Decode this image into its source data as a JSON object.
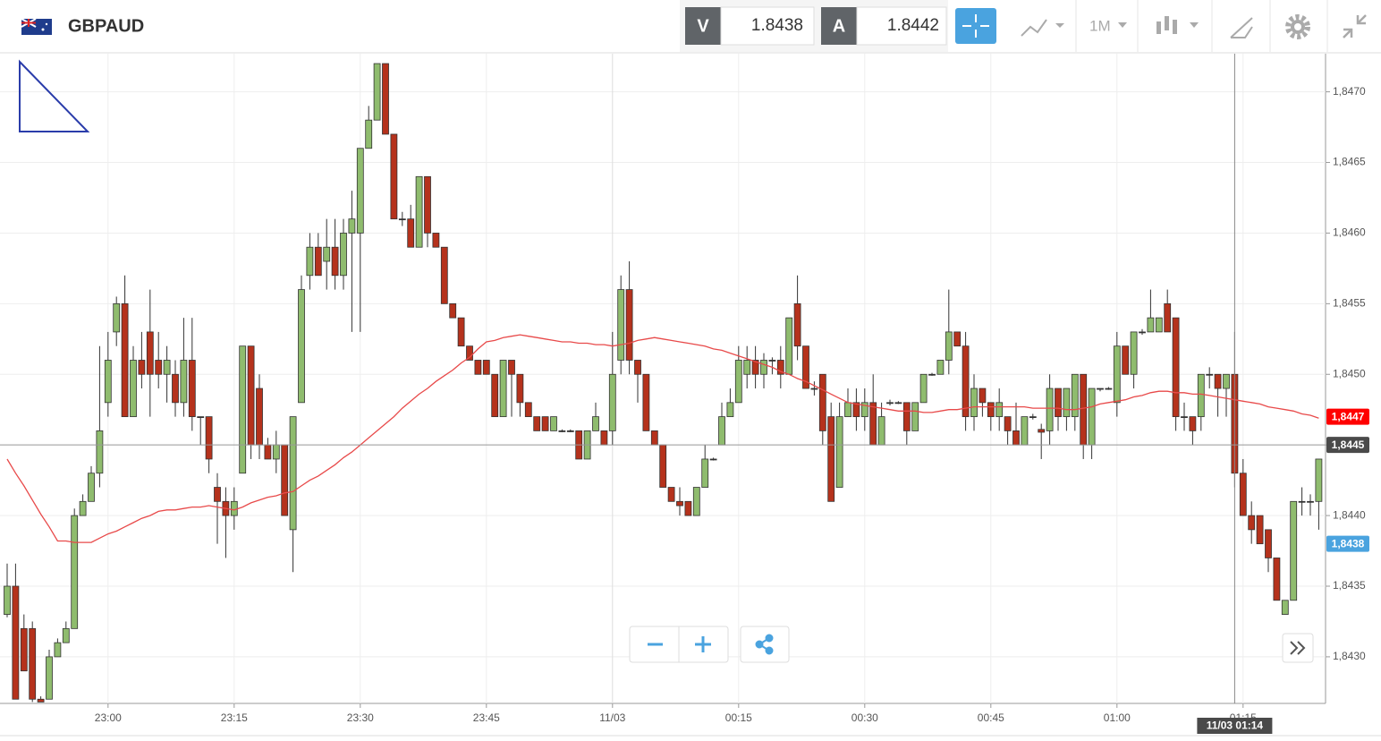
{
  "header": {
    "symbol": "GBPAUD",
    "bid_label": "V",
    "bid": 1.8438,
    "ask_label": "A",
    "ask": 1.8442,
    "timeframe": "1M"
  },
  "chart_data": {
    "type": "candlestick",
    "x": [
      "22:48",
      "22:49",
      "22:50",
      "22:51",
      "22:52",
      "22:53",
      "22:54",
      "22:55",
      "22:56",
      "22:57",
      "22:58",
      "22:59",
      "23:00",
      "23:01",
      "23:02",
      "23:03",
      "23:04",
      "23:05",
      "23:06",
      "23:07",
      "23:08",
      "23:09",
      "23:10",
      "23:11",
      "23:12",
      "23:13",
      "23:14",
      "23:15",
      "23:16",
      "23:17",
      "23:18",
      "23:19",
      "23:20",
      "23:21",
      "23:22",
      "23:23",
      "23:24",
      "23:25",
      "23:26",
      "23:27",
      "23:28",
      "23:29",
      "23:30",
      "23:31",
      "23:32",
      "23:33",
      "23:34",
      "23:35",
      "23:36",
      "23:37",
      "23:38",
      "23:39",
      "23:40",
      "23:41",
      "23:42",
      "23:43",
      "23:44",
      "23:45",
      "23:46",
      "23:47",
      "23:48",
      "23:49",
      "23:50",
      "23:51",
      "23:52",
      "23:53",
      "23:54",
      "23:55",
      "23:56",
      "23:57",
      "23:58",
      "23:59",
      "00:00",
      "00:01",
      "00:02",
      "00:03",
      "00:04",
      "00:05",
      "00:06",
      "00:07",
      "00:08",
      "00:09",
      "00:10",
      "00:11",
      "00:12",
      "00:13",
      "00:14",
      "00:15",
      "00:16",
      "00:17",
      "00:18",
      "00:19",
      "00:20",
      "00:21",
      "00:22",
      "00:23",
      "00:24",
      "00:25",
      "00:26",
      "00:27",
      "00:28",
      "00:29",
      "00:30",
      "00:31",
      "00:32",
      "00:33",
      "00:34",
      "00:35",
      "00:36",
      "00:37",
      "00:38",
      "00:39",
      "00:40",
      "00:41",
      "00:42",
      "00:43",
      "00:44",
      "00:45",
      "00:46",
      "00:47",
      "00:48",
      "00:49",
      "00:50",
      "00:51",
      "00:52",
      "00:53",
      "00:54",
      "00:55",
      "00:56",
      "00:57",
      "00:58",
      "00:59",
      "01:00",
      "01:01",
      "01:02",
      "01:03",
      "01:04",
      "01:05",
      "01:06",
      "01:07",
      "01:08",
      "01:09",
      "01:10",
      "01:11",
      "01:12",
      "01:13",
      "01:14",
      "01:15",
      "01:16",
      "01:17",
      "01:18",
      "01:19",
      "01:20",
      "01:21",
      "01:22",
      "01:23",
      "01:24"
    ],
    "ohlc": [
      [
        1.8433,
        1.84366,
        1.84328,
        1.8435
      ],
      [
        1.8435,
        1.84366,
        1.8427,
        1.8427
      ],
      [
        1.8432,
        1.8433,
        1.8429,
        1.8429
      ],
      [
        1.8432,
        1.84325,
        1.84268,
        1.8427
      ],
      [
        1.8427,
        1.84272,
        1.84268,
        1.84268
      ],
      [
        1.8427,
        1.84305,
        1.8427,
        1.843
      ],
      [
        1.843,
        1.84313,
        1.843,
        1.8431
      ],
      [
        1.8431,
        1.84325,
        1.8431,
        1.8432
      ],
      [
        1.8432,
        1.84405,
        1.8432,
        1.844
      ],
      [
        1.844,
        1.84415,
        1.844,
        1.8441
      ],
      [
        1.8441,
        1.84435,
        1.8441,
        1.8443
      ],
      [
        1.8443,
        1.8452,
        1.8442,
        1.8446
      ],
      [
        1.8448,
        1.8453,
        1.8447,
        1.8451
      ],
      [
        1.8453,
        1.84555,
        1.8452,
        1.8455
      ],
      [
        1.8455,
        1.8457,
        1.8447,
        1.8447
      ],
      [
        1.8447,
        1.8452,
        1.8447,
        1.8451
      ],
      [
        1.8451,
        1.8453,
        1.8449,
        1.845
      ],
      [
        1.8453,
        1.8456,
        1.8447,
        1.845
      ],
      [
        1.8451,
        1.8453,
        1.8449,
        1.845
      ],
      [
        1.845,
        1.8452,
        1.8448,
        1.8451
      ],
      [
        1.845,
        1.8451,
        1.8447,
        1.8448
      ],
      [
        1.8448,
        1.8454,
        1.8447,
        1.8451
      ],
      [
        1.8451,
        1.8454,
        1.8446,
        1.8447
      ],
      [
        1.8447,
        1.8447,
        1.8445,
        1.8447
      ],
      [
        1.8447,
        1.8447,
        1.8443,
        1.8444
      ],
      [
        1.8442,
        1.8443,
        1.8438,
        1.8441
      ],
      [
        1.8441,
        1.8442,
        1.8437,
        1.844
      ],
      [
        1.844,
        1.8442,
        1.8439,
        1.8441
      ],
      [
        1.8443,
        1.8452,
        1.8443,
        1.8452
      ],
      [
        1.8452,
        1.8452,
        1.8444,
        1.8445
      ],
      [
        1.8449,
        1.845,
        1.8444,
        1.8445
      ],
      [
        1.8445,
        1.84455,
        1.8444,
        1.8444
      ],
      [
        1.8444,
        1.8446,
        1.8443,
        1.8445
      ],
      [
        1.8445,
        1.8445,
        1.844,
        1.844
      ],
      [
        1.8439,
        1.8447,
        1.8436,
        1.8447
      ],
      [
        1.8448,
        1.8457,
        1.8448,
        1.8456
      ],
      [
        1.8457,
        1.846,
        1.8456,
        1.8459
      ],
      [
        1.8459,
        1.846,
        1.8457,
        1.8457
      ],
      [
        1.8458,
        1.8461,
        1.8456,
        1.8459
      ],
      [
        1.8459,
        1.8461,
        1.8456,
        1.8457
      ],
      [
        1.8457,
        1.8461,
        1.8456,
        1.846
      ],
      [
        1.846,
        1.8463,
        1.8453,
        1.8461
      ],
      [
        1.846,
        1.8466,
        1.8453,
        1.8466
      ],
      [
        1.8466,
        1.8469,
        1.8466,
        1.8468
      ],
      [
        1.8468,
        1.8472,
        1.8468,
        1.8472
      ],
      [
        1.8472,
        1.8472,
        1.8467,
        1.8467
      ],
      [
        1.8467,
        1.8467,
        1.8461,
        1.8461
      ],
      [
        1.8461,
        1.84615,
        1.84605,
        1.8461
      ],
      [
        1.8461,
        1.8462,
        1.8459,
        1.8459
      ],
      [
        1.8459,
        1.8464,
        1.8459,
        1.8464
      ],
      [
        1.8464,
        1.8464,
        1.8459,
        1.846
      ],
      [
        1.846,
        1.846,
        1.8459,
        1.8459
      ],
      [
        1.8459,
        1.8459,
        1.8455,
        1.8455
      ],
      [
        1.8455,
        1.8455,
        1.8454,
        1.8454
      ],
      [
        1.8454,
        1.8454,
        1.8452,
        1.8452
      ],
      [
        1.8452,
        1.8452,
        1.8451,
        1.8451
      ],
      [
        1.8451,
        1.8451,
        1.845,
        1.845
      ],
      [
        1.8451,
        1.8451,
        1.845,
        1.845
      ],
      [
        1.845,
        1.845,
        1.8447,
        1.8447
      ],
      [
        1.8447,
        1.8451,
        1.8447,
        1.8451
      ],
      [
        1.8451,
        1.8451,
        1.8447,
        1.845
      ],
      [
        1.845,
        1.845,
        1.8447,
        1.8448
      ],
      [
        1.8448,
        1.8448,
        1.8447,
        1.8447
      ],
      [
        1.8447,
        1.8447,
        1.8446,
        1.8446
      ],
      [
        1.8447,
        1.8447,
        1.8446,
        1.8446
      ],
      [
        1.8446,
        1.8447,
        1.8446,
        1.8447
      ],
      [
        1.8446,
        1.84461,
        1.84459,
        1.8446
      ],
      [
        1.8446,
        1.84461,
        1.84459,
        1.8446
      ],
      [
        1.8446,
        1.8446,
        1.8444,
        1.8444
      ],
      [
        1.8444,
        1.8446,
        1.8444,
        1.8446
      ],
      [
        1.8446,
        1.8448,
        1.8446,
        1.8447
      ],
      [
        1.8446,
        1.8446,
        1.8445,
        1.8445
      ],
      [
        1.8446,
        1.8453,
        1.8445,
        1.845
      ],
      [
        1.8451,
        1.8457,
        1.845,
        1.8456
      ],
      [
        1.8456,
        1.8458,
        1.845,
        1.8451
      ],
      [
        1.8451,
        1.8451,
        1.8448,
        1.845
      ],
      [
        1.845,
        1.845,
        1.8446,
        1.8446
      ],
      [
        1.8446,
        1.8446,
        1.8445,
        1.8445
      ],
      [
        1.8445,
        1.8445,
        1.8442,
        1.8442
      ],
      [
        1.8442,
        1.8442,
        1.8441,
        1.8441
      ],
      [
        1.8441,
        1.8442,
        1.844,
        1.84407
      ],
      [
        1.8441,
        1.8441,
        1.844,
        1.844
      ],
      [
        1.844,
        1.8442,
        1.844,
        1.8442
      ],
      [
        1.8442,
        1.8445,
        1.8442,
        1.8444
      ],
      [
        1.8444,
        1.84441,
        1.84439,
        1.8444
      ],
      [
        1.8445,
        1.8448,
        1.8445,
        1.8447
      ],
      [
        1.8447,
        1.8449,
        1.8447,
        1.8448
      ],
      [
        1.8448,
        1.8452,
        1.8448,
        1.8451
      ],
      [
        1.845,
        1.8452,
        1.8449,
        1.8451
      ],
      [
        1.8451,
        1.8452,
        1.8449,
        1.845
      ],
      [
        1.845,
        1.84515,
        1.8449,
        1.8451
      ],
      [
        1.8451,
        1.84512,
        1.845,
        1.8451
      ],
      [
        1.8451,
        1.8452,
        1.8449,
        1.845
      ],
      [
        1.845,
        1.8454,
        1.845,
        1.8454
      ],
      [
        1.8455,
        1.8457,
        1.8451,
        1.8452
      ],
      [
        1.8452,
        1.8452,
        1.8449,
        1.8449
      ],
      [
        1.8449,
        1.84495,
        1.84485,
        1.8449
      ],
      [
        1.845,
        1.845,
        1.8445,
        1.8446
      ],
      [
        1.8447,
        1.8448,
        1.8441,
        1.8441
      ],
      [
        1.8442,
        1.8448,
        1.8442,
        1.8447
      ],
      [
        1.8447,
        1.8449,
        1.8447,
        1.8448
      ],
      [
        1.8448,
        1.8449,
        1.8446,
        1.8447
      ],
      [
        1.8447,
        1.8449,
        1.8446,
        1.8448
      ],
      [
        1.8448,
        1.845,
        1.8445,
        1.8445
      ],
      [
        1.8445,
        1.8448,
        1.8445,
        1.8447
      ],
      [
        1.8448,
        1.84482,
        1.84478,
        1.8448
      ],
      [
        1.8448,
        1.84481,
        1.84479,
        1.8448
      ],
      [
        1.8448,
        1.8448,
        1.8445,
        1.8446
      ],
      [
        1.8446,
        1.8448,
        1.8446,
        1.8448
      ],
      [
        1.8448,
        1.845,
        1.8448,
        1.845
      ],
      [
        1.845,
        1.84501,
        1.84499,
        1.845
      ],
      [
        1.845,
        1.8451,
        1.845,
        1.8451
      ],
      [
        1.8451,
        1.8456,
        1.845,
        1.8453
      ],
      [
        1.8453,
        1.8453,
        1.8452,
        1.8452
      ],
      [
        1.8452,
        1.8453,
        1.8446,
        1.8447
      ],
      [
        1.8447,
        1.845,
        1.8446,
        1.8449
      ],
      [
        1.8449,
        1.8449,
        1.8447,
        1.8448
      ],
      [
        1.8448,
        1.8448,
        1.8446,
        1.8447
      ],
      [
        1.8447,
        1.8449,
        1.8446,
        1.8448
      ],
      [
        1.8447,
        1.8447,
        1.8445,
        1.8446
      ],
      [
        1.8446,
        1.8448,
        1.8445,
        1.8445
      ],
      [
        1.8445,
        1.8447,
        1.8445,
        1.8447
      ],
      [
        1.8447,
        1.84472,
        1.84468,
        1.8447
      ],
      [
        1.84461,
        1.84465,
        1.8444,
        1.84459
      ],
      [
        1.8446,
        1.845,
        1.8445,
        1.8449
      ],
      [
        1.8449,
        1.8449,
        1.8446,
        1.8447
      ],
      [
        1.8447,
        1.8449,
        1.8446,
        1.8449
      ],
      [
        1.8447,
        1.845,
        1.8446,
        1.845
      ],
      [
        1.845,
        1.845,
        1.8444,
        1.8445
      ],
      [
        1.8445,
        1.8449,
        1.8444,
        1.8449
      ],
      [
        1.8449,
        1.8449,
        1.84488,
        1.8449
      ],
      [
        1.8449,
        1.84491,
        1.84489,
        1.8449
      ],
      [
        1.8448,
        1.8453,
        1.8447,
        1.8452
      ],
      [
        1.8452,
        1.8452,
        1.845,
        1.845
      ],
      [
        1.845,
        1.8453,
        1.8449,
        1.8453
      ],
      [
        1.8453,
        1.84532,
        1.84528,
        1.8453
      ],
      [
        1.8453,
        1.8456,
        1.8453,
        1.8454
      ],
      [
        1.8453,
        1.8454,
        1.8453,
        1.8454
      ],
      [
        1.8455,
        1.8456,
        1.8453,
        1.8453
      ],
      [
        1.8454,
        1.8454,
        1.8446,
        1.8447
      ],
      [
        1.8447,
        1.8448,
        1.8446,
        1.8447
      ],
      [
        1.8447,
        1.8447,
        1.8445,
        1.8446
      ],
      [
        1.8447,
        1.845,
        1.8446,
        1.845
      ],
      [
        1.845,
        1.84505,
        1.8449,
        1.845
      ],
      [
        1.845,
        1.845,
        1.8447,
        1.8449
      ],
      [
        1.8449,
        1.845,
        1.8447,
        1.845
      ],
      [
        1.845,
        1.8453,
        1.8442,
        1.8443
      ],
      [
        1.8443,
        1.8444,
        1.844,
        1.844
      ],
      [
        1.844,
        1.8441,
        1.8438,
        1.8439
      ],
      [
        1.844,
        1.844,
        1.8438,
        1.8438
      ],
      [
        1.8439,
        1.8439,
        1.8436,
        1.8437
      ],
      [
        1.8437,
        1.8437,
        1.8434,
        1.8434
      ],
      [
        1.8433,
        1.8434,
        1.8433,
        1.8434
      ],
      [
        1.8434,
        1.8441,
        1.8434,
        1.8441
      ],
      [
        1.8441,
        1.8442,
        1.844,
        1.8441
      ],
      [
        1.8441,
        1.84415,
        1.844,
        1.8441
      ],
      [
        1.8441,
        1.8444,
        1.8439,
        1.8444
      ]
    ],
    "up_color": "#8fbc6e",
    "down_color": "#b5321c",
    "doji_color": "#333333",
    "ma": {
      "color": "#e84a4a",
      "values": [
        1.8444,
        1.8443,
        1.84421,
        1.84411,
        1.84401,
        1.84392,
        1.84382,
        1.84382,
        1.84381,
        1.84381,
        1.84381,
        1.84384,
        1.84387,
        1.84389,
        1.84392,
        1.84395,
        1.84398,
        1.844,
        1.84403,
        1.84404,
        1.84404,
        1.84405,
        1.84406,
        1.84406,
        1.84407,
        1.84406,
        1.84405,
        1.84404,
        1.84406,
        1.84409,
        1.84411,
        1.84413,
        1.84414,
        1.84416,
        1.84417,
        1.84421,
        1.84425,
        1.84428,
        1.84432,
        1.84436,
        1.84441,
        1.84445,
        1.8445,
        1.84455,
        1.8446,
        1.84465,
        1.8447,
        1.84476,
        1.84481,
        1.84486,
        1.8449,
        1.84495,
        1.84499,
        1.84503,
        1.84508,
        1.84512,
        1.84518,
        1.84523,
        1.84524,
        1.84526,
        1.84527,
        1.84528,
        1.84527,
        1.84526,
        1.84525,
        1.84524,
        1.84523,
        1.84523,
        1.84522,
        1.84522,
        1.84521,
        1.84521,
        1.8452,
        1.84521,
        1.84522,
        1.84524,
        1.84525,
        1.84526,
        1.84525,
        1.84524,
        1.84523,
        1.84522,
        1.84521,
        1.8452,
        1.84518,
        1.84517,
        1.84515,
        1.84513,
        1.84511,
        1.84509,
        1.84507,
        1.84505,
        1.84502,
        1.845,
        1.84497,
        1.84495,
        1.84492,
        1.84489,
        1.84486,
        1.84483,
        1.8448,
        1.84479,
        1.84478,
        1.84477,
        1.84476,
        1.84475,
        1.84474,
        1.84474,
        1.84474,
        1.84473,
        1.84473,
        1.84474,
        1.84475,
        1.84475,
        1.84476,
        1.84477,
        1.84477,
        1.84477,
        1.84477,
        1.84477,
        1.84477,
        1.84477,
        1.84476,
        1.84476,
        1.84476,
        1.84476,
        1.84475,
        1.84475,
        1.84476,
        1.84477,
        1.84479,
        1.8448,
        1.84481,
        1.84482,
        1.84484,
        1.84485,
        1.84487,
        1.84488,
        1.84488,
        1.84487,
        1.84487,
        1.84486,
        1.84486,
        1.84485,
        1.84484,
        1.84483,
        1.84482,
        1.84481,
        1.8448,
        1.84479,
        1.84477,
        1.84476,
        1.84475,
        1.84474,
        1.84472,
        1.84471,
        1.84469
      ]
    },
    "ylim": [
      1.84267,
      1.84727
    ],
    "yticks": [
      {
        "value": 1.843,
        "label": "1,8430"
      },
      {
        "value": 1.8435,
        "label": "1,8435"
      },
      {
        "value": 1.844,
        "label": "1,8440"
      },
      {
        "value": 1.8445,
        "label": "1,8445"
      },
      {
        "value": 1.845,
        "label": "1,8450"
      },
      {
        "value": 1.8455,
        "label": "1,8455"
      },
      {
        "value": 1.846,
        "label": "1,8460"
      },
      {
        "value": 1.8465,
        "label": "1,8465"
      },
      {
        "value": 1.847,
        "label": "1,8470"
      }
    ],
    "xticks": [
      "23:00",
      "23:15",
      "23:30",
      "23:45",
      {
        "value": "00:00",
        "label": "11/03"
      },
      "00:15",
      "00:30",
      "00:45",
      "01:00",
      "01:15"
    ],
    "grid": true,
    "price_labels": [
      {
        "value": 1.8447,
        "label": "1,8447",
        "color": "#ff0000"
      },
      {
        "value": 1.8445,
        "label": "1,8445",
        "color": "#4a4a4a"
      },
      {
        "value": 1.8438,
        "label": "1,8438",
        "color": "#4aa3df"
      }
    ],
    "crosshair": {
      "x": "01:14",
      "label": "11/03 01:14"
    }
  }
}
